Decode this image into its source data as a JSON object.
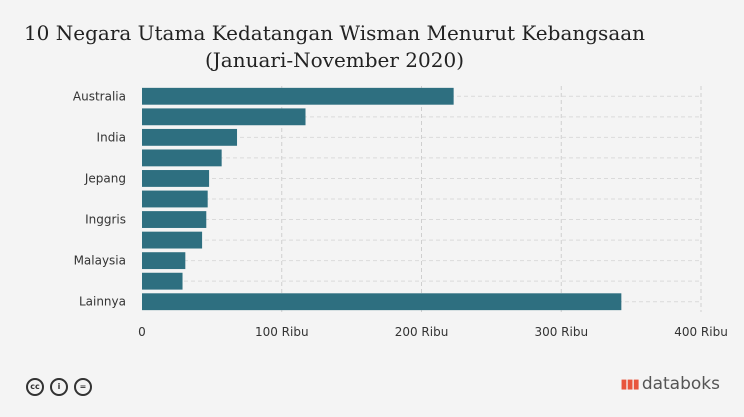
{
  "title_line1": "10 Negara Utama Kedatangan Wisman Menurut Kebangsaan",
  "title_line2": "(Januari-November 2020)",
  "brand": "databoks",
  "icons": [
    "cc-icon",
    "by-icon",
    "nd-icon"
  ],
  "chart_data": {
    "type": "bar",
    "orientation": "horizontal",
    "categories": [
      "Australia",
      "",
      "India",
      "",
      "Jepang",
      "",
      "Inggris",
      "",
      "Malaysia",
      "",
      "Lainnya"
    ],
    "values": [
      223,
      117,
      68,
      57,
      48,
      47,
      46,
      43,
      31,
      29,
      343
    ],
    "xlim": [
      0,
      400
    ],
    "xticks": [
      0,
      100,
      200,
      300,
      400
    ],
    "xtick_labels": [
      "0",
      "100 Ribu",
      "200 Ribu",
      "300 Ribu",
      "400 Ribu"
    ],
    "grid": true,
    "bar_color": "#2e6f80"
  }
}
